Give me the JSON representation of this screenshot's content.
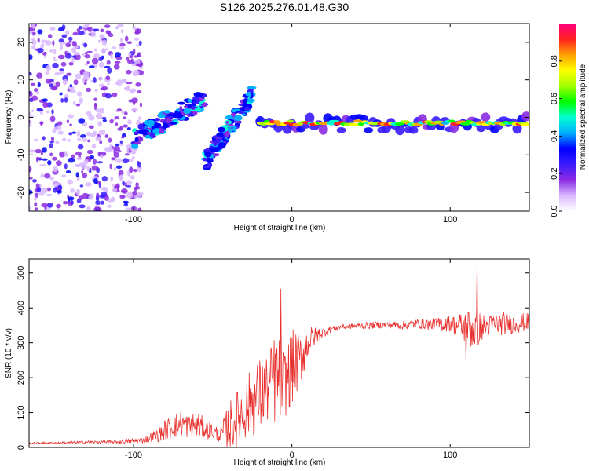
{
  "figure_title": "S126.2025.276.01.48.G30",
  "chart_data": [
    {
      "type": "heatmap",
      "title": "S126.2025.276.01.48.G30",
      "xlabel": "Height of straight line (km)",
      "ylabel": "Frequency (Hz)",
      "xlim": [
        -166,
        150
      ],
      "ylim": [
        -25,
        25
      ],
      "xticks": [
        -100,
        0,
        100
      ],
      "yticks": [
        -20,
        -10,
        0,
        10,
        20
      ],
      "colorbar": {
        "label": "Normalized spectral amplitude",
        "range": [
          0,
          1
        ],
        "ticks": [
          0.0,
          0.2,
          0.4,
          0.6,
          0.8
        ],
        "tick_labels": [
          "0.0",
          "0.2",
          "0.4",
          "0.6",
          "0.8"
        ],
        "colors": [
          "#ffffff",
          "#d9b8ff",
          "#8a2be2",
          "#3a1cff",
          "#0000ff",
          "#00b0ff",
          "#00ffd0",
          "#00ff00",
          "#a0ff00",
          "#ffff00",
          "#ffa000",
          "#ff2020",
          "#ff0080"
        ]
      },
      "features": {
        "noise_region_x": [
          -166,
          -95
        ],
        "ridge_x": [
          -20,
          148
        ],
        "ridge_freq_hz": -1.5,
        "dispersed_branch_1": {
          "x": [
            -100,
            -55
          ],
          "freq_hz": [
            -6,
            5
          ]
        },
        "dispersed_branch_2": {
          "x": [
            -55,
            -25
          ],
          "freq_hz": [
            -12,
            6
          ]
        }
      }
    },
    {
      "type": "line",
      "xlabel": "Height of straight line (km)",
      "ylabel": "SNR (10 * v/v)",
      "xlim": [
        -166,
        150
      ],
      "ylim": [
        0,
        540
      ],
      "xticks": [
        -100,
        0,
        100
      ],
      "yticks": [
        0,
        100,
        200,
        300,
        400,
        500
      ],
      "color": "#e8312e",
      "series": [
        {
          "name": "SNR",
          "x": [
            -166,
            -150,
            -130,
            -110,
            -95,
            -85,
            -80,
            -75,
            -70,
            -65,
            -60,
            -55,
            -50,
            -45,
            -40,
            -35,
            -30,
            -25,
            -20,
            -15,
            -10,
            -5,
            0,
            5,
            10,
            15,
            20,
            25,
            30,
            40,
            50,
            60,
            70,
            80,
            90,
            100,
            105,
            110,
            115,
            120,
            125,
            130,
            140,
            150
          ],
          "values": [
            12,
            13,
            15,
            16,
            20,
            35,
            50,
            60,
            70,
            60,
            65,
            55,
            45,
            35,
            60,
            80,
            110,
            130,
            150,
            170,
            200,
            180,
            230,
            250,
            300,
            320,
            330,
            340,
            345,
            348,
            350,
            352,
            350,
            355,
            352,
            355,
            350,
            345,
            340,
            345,
            350,
            355,
            355,
            360
          ],
          "noise": [
            3,
            3,
            4,
            5,
            8,
            20,
            30,
            35,
            40,
            35,
            40,
            30,
            25,
            20,
            70,
            80,
            90,
            100,
            110,
            100,
            140,
            100,
            110,
            80,
            50,
            25,
            15,
            10,
            8,
            8,
            10,
            10,
            12,
            14,
            18,
            25,
            35,
            50,
            70,
            40,
            30,
            35,
            30,
            25
          ],
          "spikes": [
            {
              "x": -7,
              "value": 455
            },
            {
              "x": 117,
              "value": 540
            },
            {
              "x": 110,
              "value": 250
            }
          ]
        }
      ]
    }
  ]
}
